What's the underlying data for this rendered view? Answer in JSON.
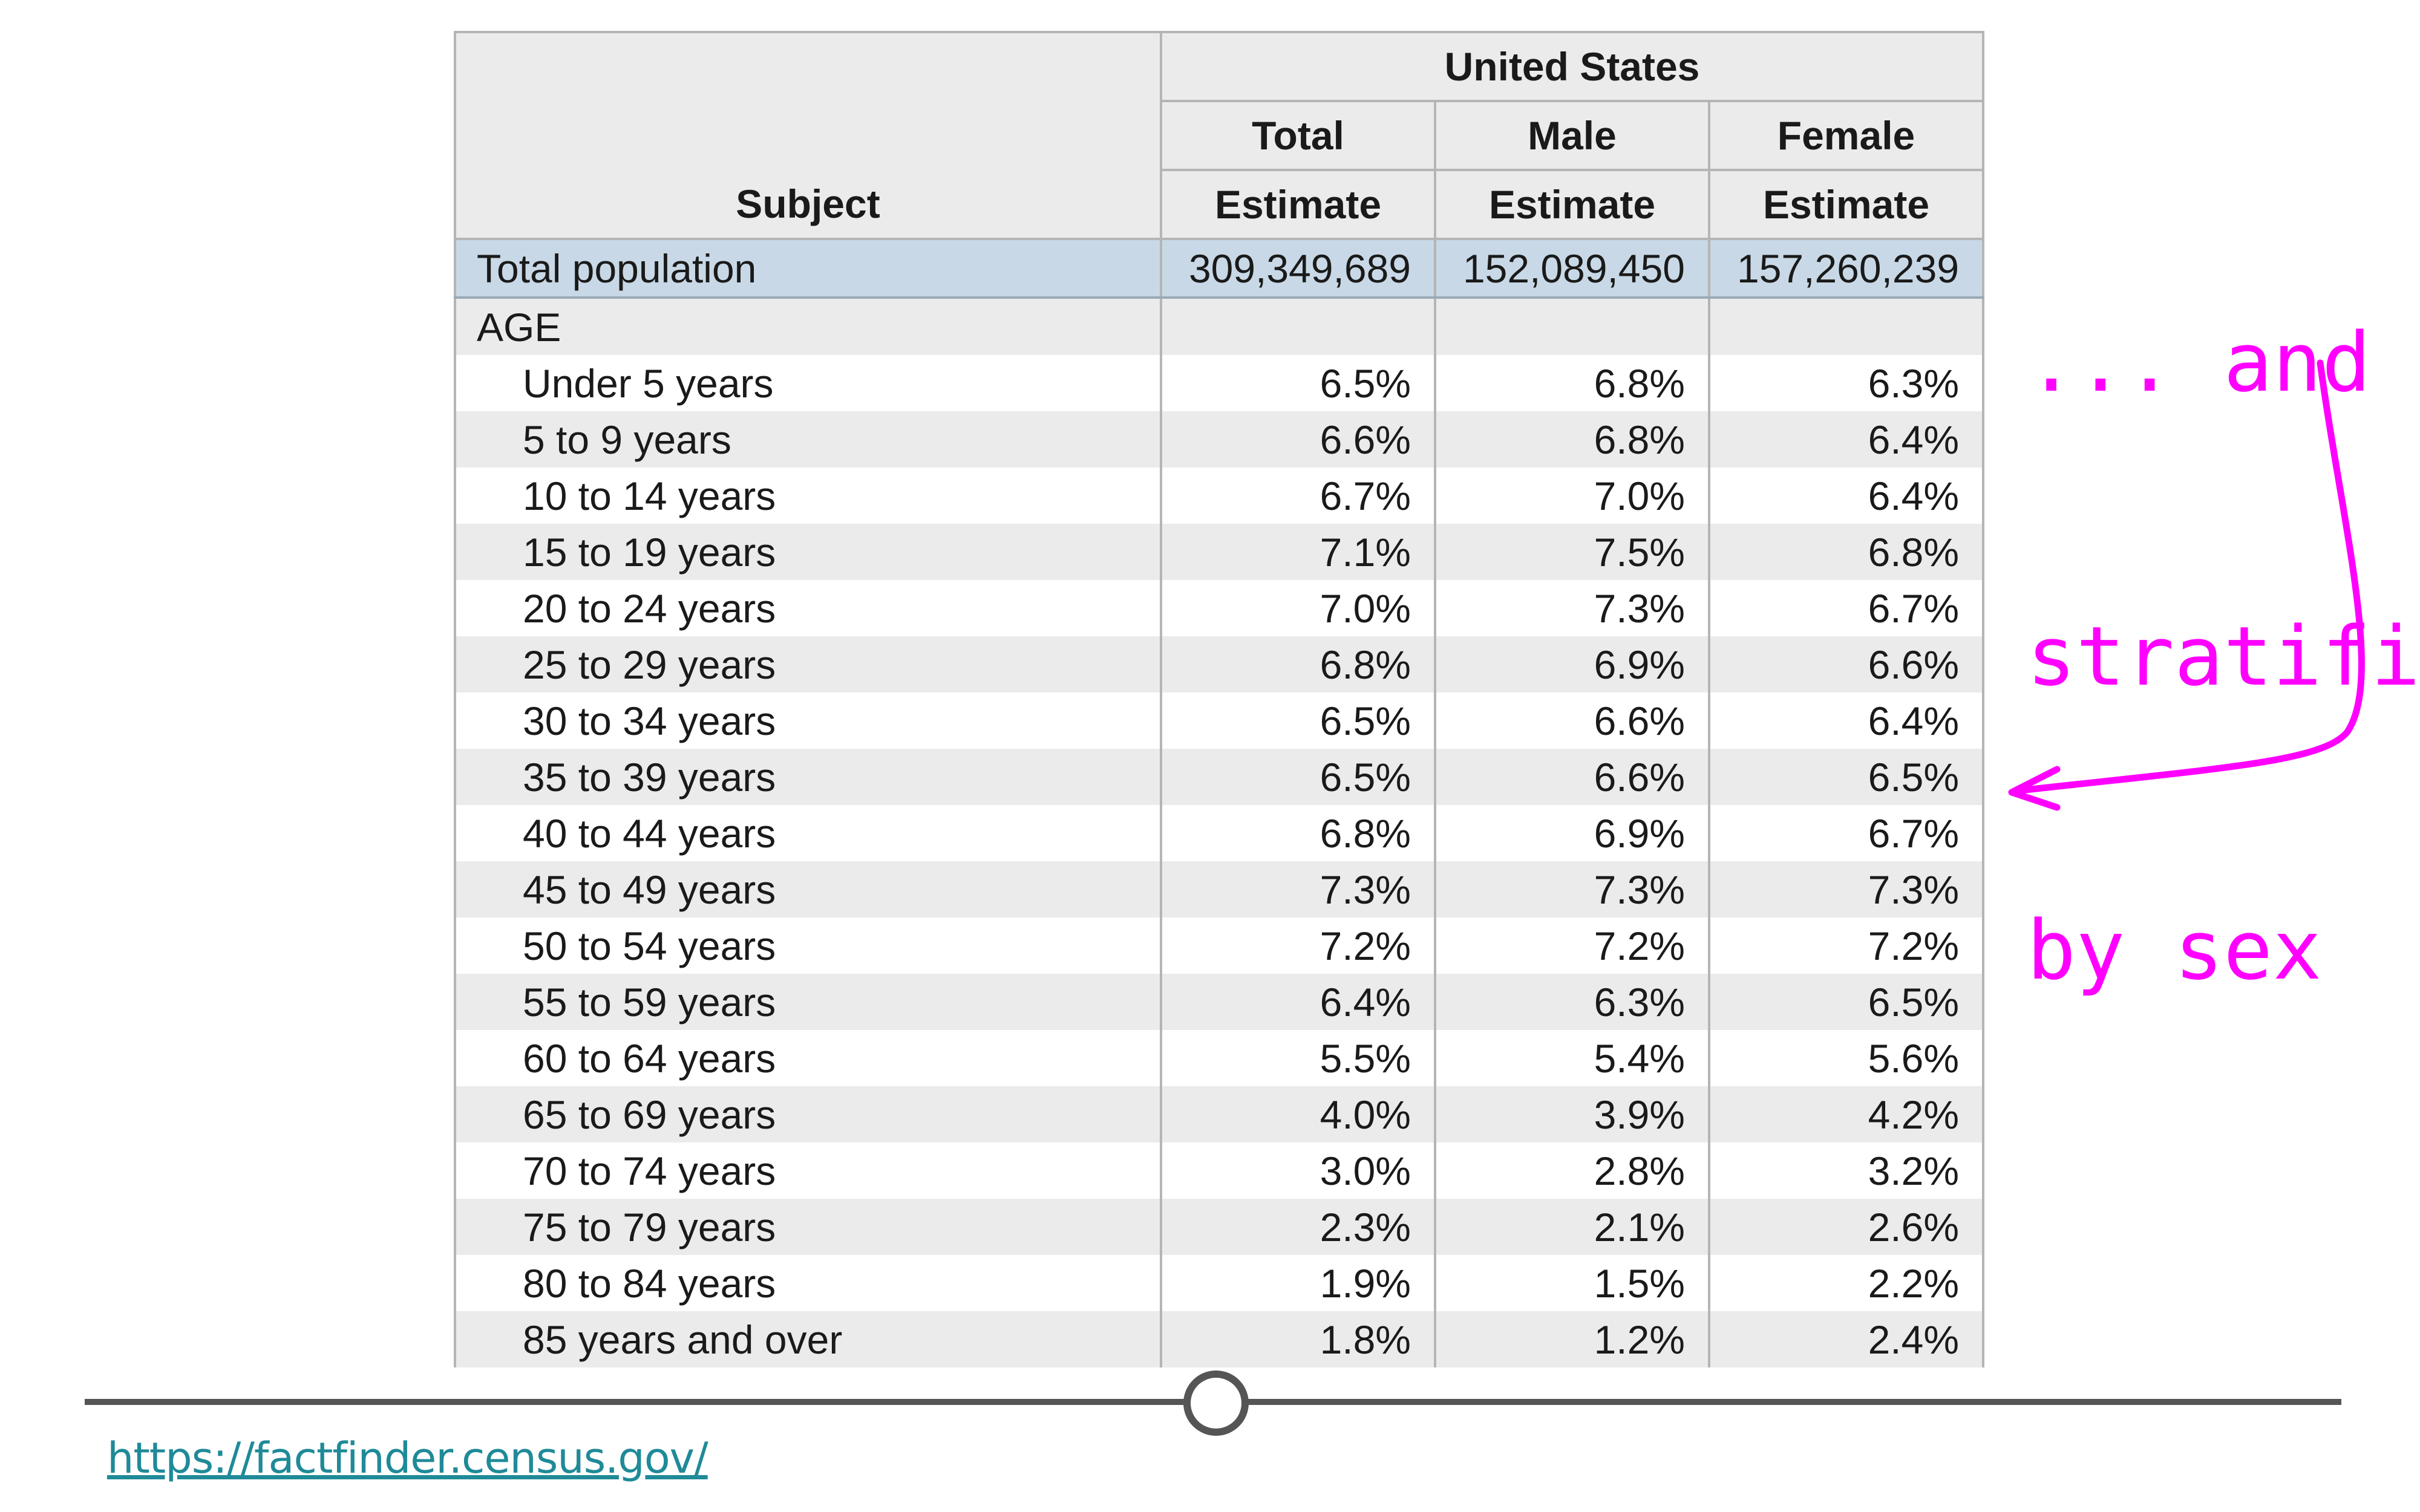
{
  "table": {
    "group_header": "United States",
    "subject_header": "Subject",
    "columns": [
      {
        "label": "Total",
        "sub": "Estimate"
      },
      {
        "label": "Male",
        "sub": "Estimate"
      },
      {
        "label": "Female",
        "sub": "Estimate"
      }
    ],
    "total_row": {
      "label": "Total population",
      "values": [
        "309,349,689",
        "152,089,450",
        "157,260,239"
      ]
    },
    "section_label": "AGE",
    "rows": [
      {
        "label": "Under 5 years",
        "values": [
          "6.5%",
          "6.8%",
          "6.3%"
        ]
      },
      {
        "label": "5 to 9 years",
        "values": [
          "6.6%",
          "6.8%",
          "6.4%"
        ]
      },
      {
        "label": "10 to 14 years",
        "values": [
          "6.7%",
          "7.0%",
          "6.4%"
        ]
      },
      {
        "label": "15 to 19 years",
        "values": [
          "7.1%",
          "7.5%",
          "6.8%"
        ]
      },
      {
        "label": "20 to 24 years",
        "values": [
          "7.0%",
          "7.3%",
          "6.7%"
        ]
      },
      {
        "label": "25 to 29 years",
        "values": [
          "6.8%",
          "6.9%",
          "6.6%"
        ]
      },
      {
        "label": "30 to 34 years",
        "values": [
          "6.5%",
          "6.6%",
          "6.4%"
        ]
      },
      {
        "label": "35 to 39 years",
        "values": [
          "6.5%",
          "6.6%",
          "6.5%"
        ]
      },
      {
        "label": "40 to 44 years",
        "values": [
          "6.8%",
          "6.9%",
          "6.7%"
        ]
      },
      {
        "label": "45 to 49 years",
        "values": [
          "7.3%",
          "7.3%",
          "7.3%"
        ]
      },
      {
        "label": "50 to 54 years",
        "values": [
          "7.2%",
          "7.2%",
          "7.2%"
        ]
      },
      {
        "label": "55 to 59 years",
        "values": [
          "6.4%",
          "6.3%",
          "6.5%"
        ]
      },
      {
        "label": "60 to 64 years",
        "values": [
          "5.5%",
          "5.4%",
          "5.6%"
        ]
      },
      {
        "label": "65 to 69 years",
        "values": [
          "4.0%",
          "3.9%",
          "4.2%"
        ]
      },
      {
        "label": "70 to 74 years",
        "values": [
          "3.0%",
          "2.8%",
          "3.2%"
        ]
      },
      {
        "label": "75 to 79 years",
        "values": [
          "2.3%",
          "2.1%",
          "2.6%"
        ]
      },
      {
        "label": "80 to 84 years",
        "values": [
          "1.9%",
          "1.5%",
          "2.2%"
        ]
      },
      {
        "label": "85 years and over",
        "values": [
          "1.8%",
          "1.2%",
          "2.4%"
        ]
      }
    ]
  },
  "annotation": {
    "lines": [
      "... and",
      "stratified",
      "by sex"
    ],
    "color": "#ff00ff"
  },
  "source": {
    "link_text": "https://factfinder.census.gov/",
    "link_color": "#1f8a98"
  },
  "colors": {
    "total_row_bg": "#c8d8e6",
    "stripe_bg": "#ebebeb",
    "timeline": "#555555"
  }
}
